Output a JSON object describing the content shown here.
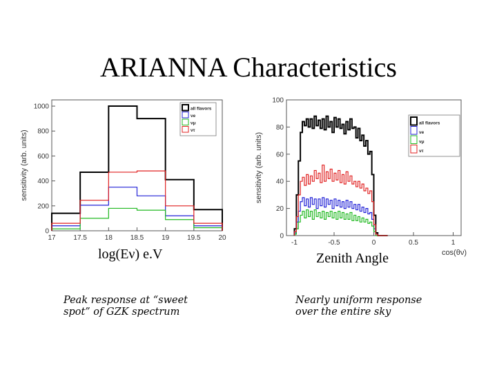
{
  "slide": {
    "title": "ARIANNA Characteristics",
    "left_caption": "log(Eν) e.V",
    "right_caption": "Zenith Angle",
    "left_note_line1": "Peak response at “sweet",
    "left_note_line2": "spot” of GZK spectrum",
    "right_note_line1": "Nearly uniform response",
    "right_note_line2": "over the entire sky"
  },
  "colors": {
    "all": "#000000",
    "e": "#1f1fd6",
    "mu": "#1fb81f",
    "tau": "#e01f1f"
  },
  "chart_data": [
    {
      "type": "histogram",
      "ylabel": "sensitivity (arb. units)",
      "xlabel": "",
      "xlim": [
        17,
        20
      ],
      "ylim": [
        0,
        1050
      ],
      "xticks": [
        "17",
        "17.5",
        "18",
        "18.5",
        "19",
        "19.5",
        "20"
      ],
      "yticks": [
        "0",
        "200",
        "400",
        "600",
        "800",
        "1000"
      ],
      "bin_edges": [
        17,
        17.5,
        18,
        18.5,
        19,
        19.5,
        20
      ],
      "legend_position": "top-right",
      "series": [
        {
          "name": "all flavors",
          "key": "all",
          "values": [
            140,
            470,
            1000,
            900,
            410,
            170
          ]
        },
        {
          "name": "νe",
          "key": "e",
          "values": [
            40,
            205,
            350,
            280,
            120,
            40
          ]
        },
        {
          "name": "νμ",
          "key": "mu",
          "values": [
            15,
            100,
            180,
            165,
            90,
            25
          ]
        },
        {
          "name": "ντ",
          "key": "tau",
          "values": [
            60,
            245,
            470,
            480,
            200,
            60
          ]
        }
      ]
    },
    {
      "type": "histogram",
      "ylabel": "sensitivity (arb. units)",
      "xlabel": "cos(θν)",
      "xlim": [
        -1.1,
        1.1
      ],
      "ylim": [
        0,
        100
      ],
      "xticks": [
        "-1",
        "-0.5",
        "0",
        "0.5",
        "1"
      ],
      "yticks": [
        "0",
        "20",
        "40",
        "60",
        "80",
        "100"
      ],
      "legend_position": "top-right",
      "bin_start": -1.0,
      "bin_width": 0.025,
      "series": [
        {
          "name": "all flavors",
          "key": "all",
          "values": [
            5,
            30,
            55,
            76,
            84,
            81,
            86,
            80,
            86,
            79,
            88,
            81,
            85,
            79,
            86,
            78,
            88,
            80,
            84,
            76,
            87,
            80,
            86,
            79,
            82,
            75,
            84,
            78,
            86,
            79,
            80,
            72,
            79,
            70,
            74,
            66,
            70,
            60,
            62,
            45,
            15,
            2,
            0,
            0,
            0,
            0,
            0
          ]
        },
        {
          "name": "νe",
          "key": "e",
          "values": [
            2,
            10,
            18,
            25,
            28,
            22,
            27,
            21,
            28,
            23,
            27,
            20,
            27,
            22,
            28,
            21,
            27,
            23,
            26,
            20,
            27,
            22,
            26,
            21,
            25,
            20,
            26,
            21,
            25,
            20,
            23,
            19,
            23,
            18,
            21,
            17,
            20,
            16,
            17,
            12,
            5,
            1,
            0,
            0,
            0,
            0,
            0
          ]
        },
        {
          "name": "νμ",
          "key": "mu",
          "values": [
            1,
            5,
            10,
            15,
            18,
            13,
            19,
            14,
            18,
            12,
            19,
            14,
            17,
            13,
            18,
            12,
            17,
            14,
            18,
            13,
            17,
            12,
            18,
            13,
            17,
            12,
            16,
            12,
            17,
            11,
            15,
            11,
            14,
            10,
            13,
            10,
            12,
            9,
            10,
            7,
            3,
            0,
            0,
            0,
            0,
            0,
            0
          ]
        },
        {
          "name": "ντ",
          "key": "tau",
          "values": [
            3,
            14,
            30,
            40,
            43,
            37,
            45,
            38,
            44,
            40,
            48,
            42,
            46,
            39,
            52,
            40,
            47,
            42,
            49,
            40,
            46,
            41,
            48,
            39,
            45,
            38,
            47,
            40,
            44,
            38,
            40,
            36,
            40,
            35,
            38,
            33,
            35,
            31,
            33,
            25,
            8,
            1,
            0,
            0,
            0,
            0,
            0
          ]
        }
      ]
    }
  ]
}
